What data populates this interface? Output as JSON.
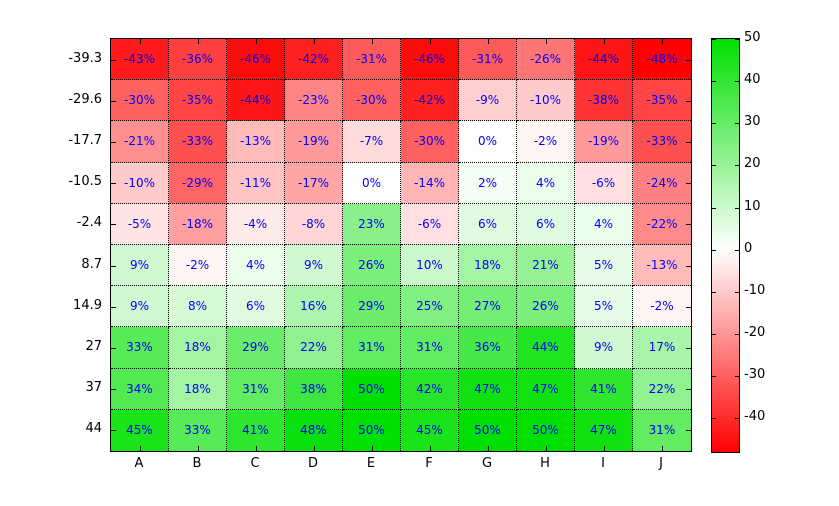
{
  "chart_data": {
    "type": "heatmap",
    "title": "",
    "xlabel": "",
    "ylabel": "",
    "x_categories": [
      "A",
      "B",
      "C",
      "D",
      "E",
      "F",
      "G",
      "H",
      "I",
      "J"
    ],
    "y_categories": [
      "-39.3",
      "-29.6",
      "-17.7",
      "-10.5",
      "-2.4",
      "8.7",
      "14.9",
      "27",
      "37",
      "44"
    ],
    "values": [
      [
        -43,
        -36,
        -46,
        -42,
        -31,
        -46,
        -31,
        -26,
        -44,
        -48
      ],
      [
        -30,
        -35,
        -44,
        -23,
        -30,
        -42,
        -9,
        -10,
        -38,
        -35
      ],
      [
        -21,
        -33,
        -13,
        -19,
        -7,
        -30,
        0,
        -2,
        -19,
        -33
      ],
      [
        -10,
        -29,
        -11,
        -17,
        0,
        -14,
        2,
        4,
        -6,
        -24
      ],
      [
        -5,
        -18,
        -4,
        -8,
        23,
        -6,
        6,
        6,
        4,
        -22
      ],
      [
        9,
        -2,
        4,
        9,
        26,
        10,
        18,
        21,
        5,
        -13
      ],
      [
        9,
        8,
        6,
        16,
        29,
        25,
        27,
        26,
        5,
        -2
      ],
      [
        33,
        18,
        29,
        22,
        31,
        31,
        36,
        44,
        9,
        17
      ],
      [
        34,
        18,
        31,
        38,
        50,
        42,
        47,
        47,
        41,
        22
      ],
      [
        45,
        33,
        41,
        48,
        50,
        45,
        50,
        50,
        47,
        31
      ]
    ],
    "cell_value_suffix": "%",
    "colorbar": {
      "min": -48,
      "max": 50,
      "ticks": [
        50,
        40,
        30,
        20,
        10,
        0,
        -10,
        -20,
        -30,
        -40
      ],
      "position": "right"
    },
    "colors": {
      "positive_max": "#00e000",
      "zero": "#ffffff",
      "negative_min": "#ff0000",
      "cell_text": "#0000ff",
      "axis_text": "#000000",
      "grid_line": "#000000"
    },
    "grid": "dotted",
    "background": "#ffffff"
  }
}
